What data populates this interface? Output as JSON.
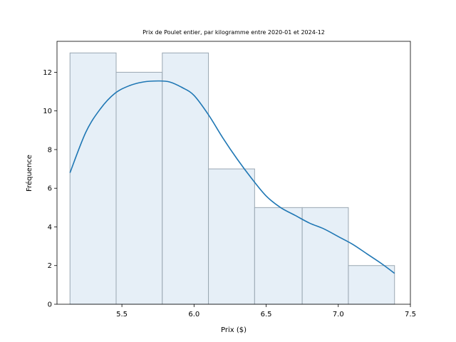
{
  "chart_data": {
    "type": "bar",
    "title": "Prix de Poulet entier, par kilogramme entre 2020-01 et 2024-12",
    "xlabel": "Prix ($)",
    "ylabel": "Fréquence",
    "xlim": [
      5.05,
      7.5
    ],
    "ylim": [
      0,
      13.6
    ],
    "x_ticks": [
      5.5,
      6.0,
      6.5,
      7.0,
      7.5
    ],
    "x_tick_labels": [
      "5.5",
      "6.0",
      "6.5",
      "7.0",
      "7.5"
    ],
    "y_ticks": [
      0,
      2,
      4,
      6,
      8,
      10,
      12
    ],
    "y_tick_labels": [
      "0",
      "2",
      "4",
      "6",
      "8",
      "10",
      "12"
    ],
    "bins": [
      {
        "start": 5.14,
        "end": 5.46,
        "count": 13
      },
      {
        "start": 5.46,
        "end": 5.78,
        "count": 12
      },
      {
        "start": 5.78,
        "end": 6.1,
        "count": 13
      },
      {
        "start": 6.1,
        "end": 6.42,
        "count": 7
      },
      {
        "start": 6.42,
        "end": 6.75,
        "count": 5
      },
      {
        "start": 6.75,
        "end": 7.07,
        "count": 5
      },
      {
        "start": 7.07,
        "end": 7.39,
        "count": 2
      }
    ],
    "kde_series": {
      "x": [
        5.14,
        5.25,
        5.35,
        5.45,
        5.55,
        5.65,
        5.75,
        5.83,
        5.92,
        6.0,
        6.1,
        6.2,
        6.3,
        6.4,
        6.5,
        6.6,
        6.7,
        6.8,
        6.9,
        7.0,
        7.1,
        7.2,
        7.3,
        7.39
      ],
      "y": [
        6.8,
        8.9,
        10.1,
        10.9,
        11.3,
        11.5,
        11.55,
        11.5,
        11.2,
        10.8,
        9.8,
        8.6,
        7.5,
        6.5,
        5.6,
        5.0,
        4.6,
        4.2,
        3.9,
        3.5,
        3.1,
        2.6,
        2.1,
        1.6
      ]
    },
    "grid": false,
    "legend": "none",
    "colors": {
      "bar_fill": "#e6eff7",
      "bar_edge": "#9aa7b2",
      "kde_line": "#1f77b4",
      "axes": "#000000"
    }
  }
}
